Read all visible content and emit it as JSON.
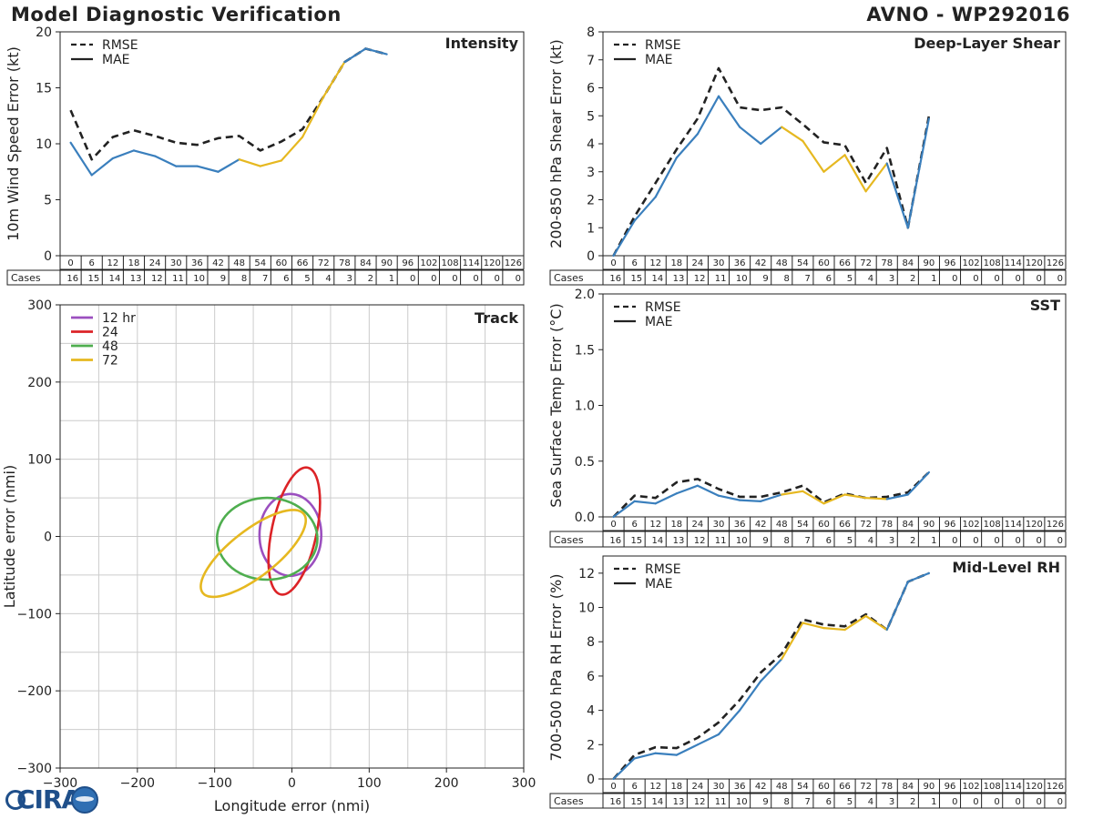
{
  "title": "Model Diagnostic Verification",
  "model_storm": "AVNO - WP292016",
  "logo_text": "CIRA",
  "legend": {
    "rmse": "RMSE",
    "mae": "MAE"
  },
  "cases_label": "Cases",
  "colors": {
    "blue": "#3a7fbd",
    "yellow": "#e6b820",
    "rmse": "#222222",
    "purple": "#9b4fbf",
    "red": "#dc2327",
    "green": "#4fae4f",
    "track_yellow": "#e6b820",
    "grid": "#cccccc"
  },
  "hours": [
    0,
    6,
    12,
    18,
    24,
    30,
    36,
    42,
    48,
    54,
    60,
    66,
    72,
    78,
    84,
    90,
    96,
    102,
    108,
    114,
    120,
    126
  ],
  "cases": [
    16,
    15,
    14,
    13,
    12,
    11,
    10,
    9,
    8,
    7,
    6,
    5,
    4,
    3,
    2,
    1,
    0,
    0,
    0,
    0,
    0,
    0
  ],
  "chart_data": [
    {
      "id": "intensity",
      "type": "line",
      "title": "Intensity",
      "ylabel": "10m Wind Speed Error (kt)",
      "ylim": [
        0,
        20
      ],
      "yticks": [
        0,
        5,
        10,
        15,
        20
      ],
      "rmse": [
        13.0,
        8.6,
        10.6,
        11.2,
        10.7,
        10.1,
        9.9,
        10.5,
        10.7,
        9.4,
        10.2,
        11.3,
        14.2,
        17.3,
        18.5,
        18.0
      ],
      "mae": [
        10.1,
        7.2,
        8.7,
        9.4,
        8.9,
        8.0,
        8.0,
        7.5,
        8.6,
        8.0,
        8.5,
        10.6,
        14.2,
        17.3,
        18.5,
        18.0
      ]
    },
    {
      "id": "shear",
      "type": "line",
      "title": "Deep-Layer Shear",
      "ylabel": "200-850 hPa Shear Error (kt)",
      "ylim": [
        0,
        8
      ],
      "yticks": [
        0,
        1,
        2,
        3,
        4,
        5,
        6,
        7,
        8
      ],
      "rmse": [
        0.0,
        1.4,
        2.6,
        3.8,
        4.9,
        6.7,
        5.3,
        5.2,
        5.3,
        4.7,
        4.05,
        3.95,
        2.6,
        3.85,
        1.0,
        5.0
      ],
      "mae": [
        0.0,
        1.25,
        2.1,
        3.5,
        4.35,
        5.7,
        4.6,
        4.0,
        4.6,
        4.1,
        3.0,
        3.6,
        2.3,
        3.3,
        1.0,
        4.9
      ]
    },
    {
      "id": "sst",
      "type": "line",
      "title": "SST",
      "ylabel": "Sea Surface Temp Error (°C)",
      "ylim": [
        0,
        2.0
      ],
      "yticks": [
        0.0,
        0.5,
        1.0,
        1.5,
        2.0
      ],
      "rmse": [
        0.0,
        0.19,
        0.17,
        0.31,
        0.34,
        0.25,
        0.18,
        0.18,
        0.22,
        0.28,
        0.13,
        0.21,
        0.17,
        0.18,
        0.22,
        0.4
      ],
      "mae": [
        0.0,
        0.14,
        0.12,
        0.21,
        0.28,
        0.19,
        0.15,
        0.14,
        0.2,
        0.23,
        0.12,
        0.2,
        0.17,
        0.16,
        0.2,
        0.4
      ]
    },
    {
      "id": "rh",
      "type": "line",
      "title": "Mid-Level RH",
      "ylabel": "700-500 hPa RH Error (%)",
      "ylim": [
        0,
        13
      ],
      "yticks": [
        0,
        2,
        4,
        6,
        8,
        10,
        12
      ],
      "rmse": [
        0.0,
        1.4,
        1.85,
        1.8,
        2.4,
        3.3,
        4.6,
        6.2,
        7.3,
        9.3,
        9.0,
        8.9,
        9.6,
        8.7,
        11.5,
        12.0
      ],
      "mae": [
        0.0,
        1.2,
        1.5,
        1.4,
        2.0,
        2.6,
        4.0,
        5.7,
        7.0,
        9.1,
        8.8,
        8.7,
        9.5,
        8.7,
        11.5,
        12.0
      ]
    },
    {
      "id": "track",
      "type": "scatter",
      "title": "Track",
      "xlabel": "Longitude error (nmi)",
      "ylabel": "Latitude error (nmi)",
      "xlim": [
        -300,
        300
      ],
      "ylim": [
        -300,
        300
      ],
      "ticks": [
        -300,
        -200,
        -100,
        0,
        100,
        200,
        300
      ],
      "ellipses": [
        {
          "label": "12 hr",
          "cx": -2,
          "cy": 2,
          "rx": 40,
          "ry": 53,
          "angle": 0
        },
        {
          "label": "24",
          "cx": 3,
          "cy": 7,
          "rx": 84,
          "ry": 29,
          "angle": 78
        },
        {
          "label": "48",
          "cx": -32,
          "cy": -3,
          "rx": 65,
          "ry": 53,
          "angle": 0
        },
        {
          "label": "72",
          "cx": -50,
          "cy": -22,
          "rx": 83,
          "ry": 30,
          "angle": 38
        }
      ]
    }
  ]
}
